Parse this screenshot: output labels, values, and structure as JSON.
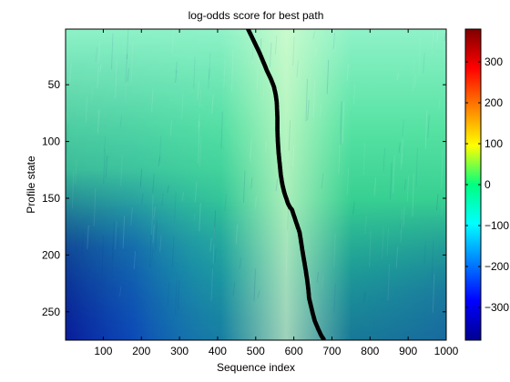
{
  "chart_data": {
    "type": "heatmap",
    "title": "log-odds score for best path",
    "xlabel": "Sequence index",
    "ylabel": "Profile state",
    "xlim": [
      1,
      1000
    ],
    "ylim": [
      1,
      275
    ],
    "y_axis_reversed": true,
    "x_ticks": [
      100,
      200,
      300,
      400,
      500,
      600,
      700,
      800,
      900,
      1000
    ],
    "y_ticks": [
      50,
      100,
      150,
      200,
      250
    ],
    "colorbar": {
      "colormap": "jet",
      "range": [
        -380,
        380
      ],
      "ticks": [
        300,
        200,
        100,
        0,
        -100,
        -200,
        -300
      ],
      "tick_labels": [
        "300",
        "200",
        "100",
        "0",
        "−100",
        "−200",
        "−300"
      ]
    },
    "best_path": {
      "color": "#000000",
      "x": [
        480,
        490,
        500,
        510,
        520,
        530,
        540,
        548,
        552,
        555,
        556,
        557,
        557,
        558,
        560,
        563,
        566,
        570,
        575,
        580,
        585,
        590,
        595,
        600,
        605,
        610,
        615,
        618,
        622,
        627,
        632,
        635,
        638,
        640,
        645,
        650,
        655,
        660,
        665,
        672,
        680
      ],
      "y": [
        1,
        8,
        15,
        22,
        30,
        38,
        45,
        52,
        58,
        65,
        72,
        80,
        90,
        100,
        110,
        120,
        130,
        138,
        145,
        150,
        155,
        158,
        160,
        165,
        170,
        175,
        180,
        186,
        195,
        205,
        215,
        222,
        230,
        238,
        245,
        252,
        258,
        262,
        266,
        271,
        275
      ]
    },
    "grid": false,
    "legend": "none"
  }
}
